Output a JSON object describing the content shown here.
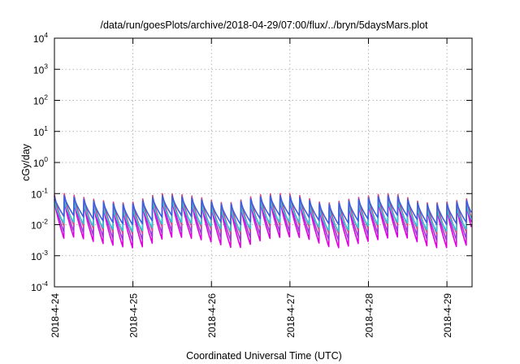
{
  "chart_data": {
    "type": "line",
    "title": "/data/run/goesPlots/archive/2018-04-29/07:00/flux/../bryn/5daysMars.plot",
    "xlabel": "Coordinated Universal Time (UTC)",
    "ylabel": "cGy/day",
    "yscale": "log",
    "ylim": [
      0.0001,
      10000
    ],
    "y_ticks": [
      {
        "base": "10",
        "exp": "-4",
        "value": 0.0001
      },
      {
        "base": "10",
        "exp": "-3",
        "value": 0.001
      },
      {
        "base": "10",
        "exp": "-2",
        "value": 0.01
      },
      {
        "base": "10",
        "exp": "-1",
        "value": 0.1
      },
      {
        "base": "10",
        "exp": "0",
        "value": 1
      },
      {
        "base": "10",
        "exp": "1",
        "value": 10
      },
      {
        "base": "10",
        "exp": "2",
        "value": 100
      },
      {
        "base": "10",
        "exp": "3",
        "value": 1000
      },
      {
        "base": "10",
        "exp": "4",
        "value": 10000
      }
    ],
    "x_ticks": [
      "2018-4-24",
      "2018-4-25",
      "2018-4-26",
      "2018-4-27",
      "2018-4-28",
      "2018-4-29"
    ],
    "x_range_days": [
      0,
      5.32
    ],
    "grid": true,
    "sawtooth_period_hours": 3,
    "series": [
      {
        "color": "#e000e0",
        "peak_range": [
          0.035,
          0.07
        ],
        "trough_range": [
          0.0018,
          0.004
        ]
      },
      {
        "color": "#9b3bd6",
        "peak_range": [
          0.045,
          0.09
        ],
        "trough_range": [
          0.003,
          0.006
        ]
      },
      {
        "color": "#d84a7a",
        "peak_range": [
          0.05,
          0.1
        ],
        "trough_range": [
          0.005,
          0.01
        ]
      },
      {
        "color": "#2ec8d8",
        "peak_range": [
          0.03,
          0.06
        ],
        "trough_range": [
          0.006,
          0.012
        ]
      },
      {
        "color": "#3a60e0",
        "peak_range": [
          0.045,
          0.085
        ],
        "trough_range": [
          0.01,
          0.02
        ]
      }
    ]
  }
}
